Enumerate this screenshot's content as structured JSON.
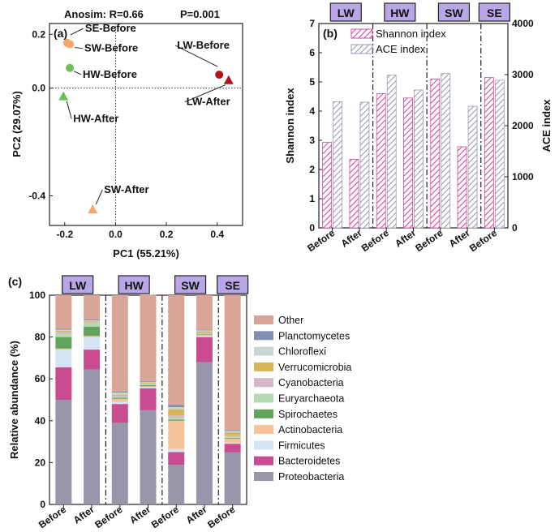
{
  "colors": {
    "shannon": "#d5499b",
    "ace": "#9b9bb5",
    "group_box_fill": "#b9a6e6",
    "Other": "#d9a596",
    "Planctomycetes": "#7f8fb3",
    "Chloroflexi": "#c7d7d2",
    "Verrucomicrobia": "#d6b656",
    "Cyanobacteria": "#d7b5c9",
    "Euryarchaeota": "#b6dbb3",
    "Spirochaetes": "#62a35d",
    "Actinobacteria": "#f6c29a",
    "Firmicutes": "#d5e4f2",
    "Bacteroidetes": "#c94b90",
    "Proteobacteria": "#9796ab"
  },
  "chart_data": [
    {
      "panel": "(a)",
      "type": "scatter",
      "title": "Anosim: R=0.66",
      "subtitle": "P=0.001",
      "xlabel": "PC1 (55.21%)",
      "ylabel": "PC2 (29.07%)",
      "xlim": [
        -0.26,
        0.5
      ],
      "ylim": [
        -0.51,
        0.24
      ],
      "xticks": [
        "-0.2",
        "0.0",
        "0.2",
        "0.4"
      ],
      "yticks": [
        "-0.4",
        "0.0",
        "0.2"
      ],
      "points": [
        {
          "label": "SE-Before",
          "x": -0.19,
          "y": 0.168,
          "shape": "circle",
          "color": "#f6a76a"
        },
        {
          "label": "SW-Before",
          "x": -0.18,
          "y": 0.163,
          "shape": "circle",
          "color": "#f6a76a"
        },
        {
          "label": "HW-Before",
          "x": -0.18,
          "y": 0.075,
          "shape": "circle",
          "color": "#6fbf59"
        },
        {
          "label": "HW-After",
          "x": -0.205,
          "y": -0.03,
          "shape": "triangle",
          "color": "#6fbf59"
        },
        {
          "label": "LW-Before",
          "x": 0.408,
          "y": 0.05,
          "shape": "circle",
          "color": "#b0151e"
        },
        {
          "label": "LW-After",
          "x": 0.445,
          "y": 0.03,
          "shape": "triangle",
          "color": "#b0151e"
        },
        {
          "label": "SW-After",
          "x": -0.09,
          "y": -0.45,
          "shape": "triangle",
          "color": "#f6a76a"
        }
      ]
    },
    {
      "panel": "(b)",
      "type": "bar",
      "groups": [
        "LW",
        "HW",
        "SW",
        "SE"
      ],
      "categories": [
        "Before",
        "After",
        "Before",
        "After",
        "Before",
        "After",
        "Before"
      ],
      "ylabel": "Shannon index",
      "y2label": "ACE index",
      "ylim": [
        0,
        7
      ],
      "y2lim": [
        0,
        4000
      ],
      "yticks": [
        "0",
        "1",
        "2",
        "3",
        "4",
        "5",
        "6",
        "7"
      ],
      "y2ticks": [
        "0",
        "1000",
        "2000",
        "3000",
        "4000"
      ],
      "legend": "top-left",
      "series": [
        {
          "name": "Shannon index",
          "axis": "left",
          "values": [
            2.93,
            2.35,
            4.6,
            4.45,
            5.1,
            2.78,
            5.15
          ]
        },
        {
          "name": "ACE index",
          "axis": "right",
          "values": [
            2470,
            2460,
            2990,
            2700,
            3020,
            2380,
            2890
          ]
        }
      ]
    },
    {
      "panel": "(c)",
      "type": "bar",
      "stacked": true,
      "groups": [
        "LW",
        "HW",
        "SW",
        "SE"
      ],
      "categories": [
        "Before",
        "After",
        "Before",
        "After",
        "Before",
        "After",
        "Before"
      ],
      "ylabel": "Relative abundance (%)",
      "ylim": [
        0,
        100
      ],
      "yticks": [
        "0",
        "20",
        "40",
        "60",
        "80",
        "100"
      ],
      "legend": "right",
      "series": [
        {
          "name": "Proteobacteria",
          "values": [
            50,
            64.5,
            39,
            45,
            19,
            68,
            25
          ]
        },
        {
          "name": "Bacteroidetes",
          "values": [
            15.5,
            9.5,
            9,
            10.5,
            6,
            12,
            4
          ]
        },
        {
          "name": "Firmicutes",
          "values": [
            8.5,
            6,
            1,
            0.5,
            1.5,
            0.5,
            0.5
          ]
        },
        {
          "name": "Actinobacteria",
          "values": [
            0.5,
            0.5,
            1.5,
            0.5,
            13.5,
            0.5,
            2
          ]
        },
        {
          "name": "Spirochaetes",
          "values": [
            5.5,
            4.5,
            0.5,
            0.5,
            0.5,
            0.3,
            0.3
          ]
        },
        {
          "name": "Euryarchaeota",
          "values": [
            1.5,
            1.5,
            0.5,
            0.5,
            1,
            0.3,
            0.5
          ]
        },
        {
          "name": "Cyanobacteria",
          "values": [
            1,
            0.5,
            0.5,
            0.3,
            1,
            0.3,
            0.5
          ]
        },
        {
          "name": "Verrucomicrobia",
          "values": [
            0.5,
            0.5,
            0.5,
            0.5,
            3,
            0.8,
            1.5
          ]
        },
        {
          "name": "Chloroflexi",
          "values": [
            0.5,
            0.5,
            1,
            0.3,
            1,
            0.5,
            0.8
          ]
        },
        {
          "name": "Planctomycetes",
          "values": [
            0.5,
            0.5,
            0.5,
            0.4,
            1,
            0.3,
            0.4
          ]
        },
        {
          "name": "Other",
          "values": [
            16,
            11.5,
            46,
            41.2,
            52.5,
            16.5,
            64.5
          ]
        }
      ]
    }
  ]
}
